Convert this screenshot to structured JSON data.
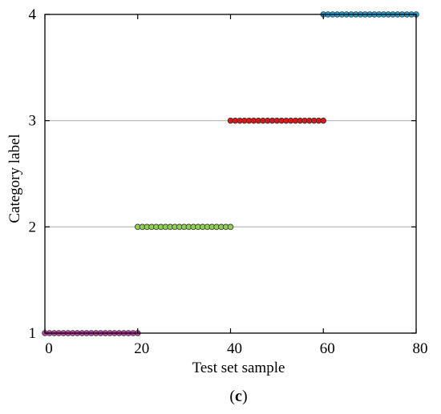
{
  "chart_data": {
    "type": "scatter",
    "panel_label": {
      "open": "(",
      "letter": "c",
      "close": ")"
    },
    "xlabel": "Test set sample",
    "ylabel": "Category label",
    "xlim": [
      0,
      80
    ],
    "ylim": [
      1,
      4
    ],
    "x_ticks": [
      0,
      20,
      40,
      60,
      80
    ],
    "y_ticks": [
      1,
      2,
      3,
      4
    ],
    "grid": "horizontal",
    "series": [
      {
        "color": "#c040a8",
        "x": [
          0,
          1,
          2,
          3,
          4,
          5,
          6,
          7,
          8,
          9,
          10,
          11,
          12,
          13,
          14,
          15,
          16,
          17,
          18,
          19,
          20
        ],
        "y": [
          1,
          1,
          1,
          1,
          1,
          1,
          1,
          1,
          1,
          1,
          1,
          1,
          1,
          1,
          1,
          1,
          1,
          1,
          1,
          1,
          1
        ]
      },
      {
        "color": "#8fd050",
        "x": [
          20,
          21,
          22,
          23,
          24,
          25,
          26,
          27,
          28,
          29,
          30,
          31,
          32,
          33,
          34,
          35,
          36,
          37,
          38,
          39,
          40
        ],
        "y": [
          2,
          2,
          2,
          2,
          2,
          2,
          2,
          2,
          2,
          2,
          2,
          2,
          2,
          2,
          2,
          2,
          2,
          2,
          2,
          2,
          2
        ]
      },
      {
        "color": "#d81818",
        "x": [
          40,
          41,
          42,
          43,
          44,
          45,
          46,
          47,
          48,
          49,
          50,
          51,
          52,
          53,
          54,
          55,
          56,
          57,
          58,
          59,
          60
        ],
        "y": [
          3,
          3,
          3,
          3,
          3,
          3,
          3,
          3,
          3,
          3,
          3,
          3,
          3,
          3,
          3,
          3,
          3,
          3,
          3,
          3,
          3
        ]
      },
      {
        "color": "#1aa8e0",
        "x": [
          60,
          61,
          62,
          63,
          64,
          65,
          66,
          67,
          68,
          69,
          70,
          71,
          72,
          73,
          74,
          75,
          76,
          77,
          78,
          79,
          80
        ],
        "y": [
          4,
          4,
          4,
          4,
          4,
          4,
          4,
          4,
          4,
          4,
          4,
          4,
          4,
          4,
          4,
          4,
          4,
          4,
          4,
          4,
          4
        ]
      }
    ]
  }
}
